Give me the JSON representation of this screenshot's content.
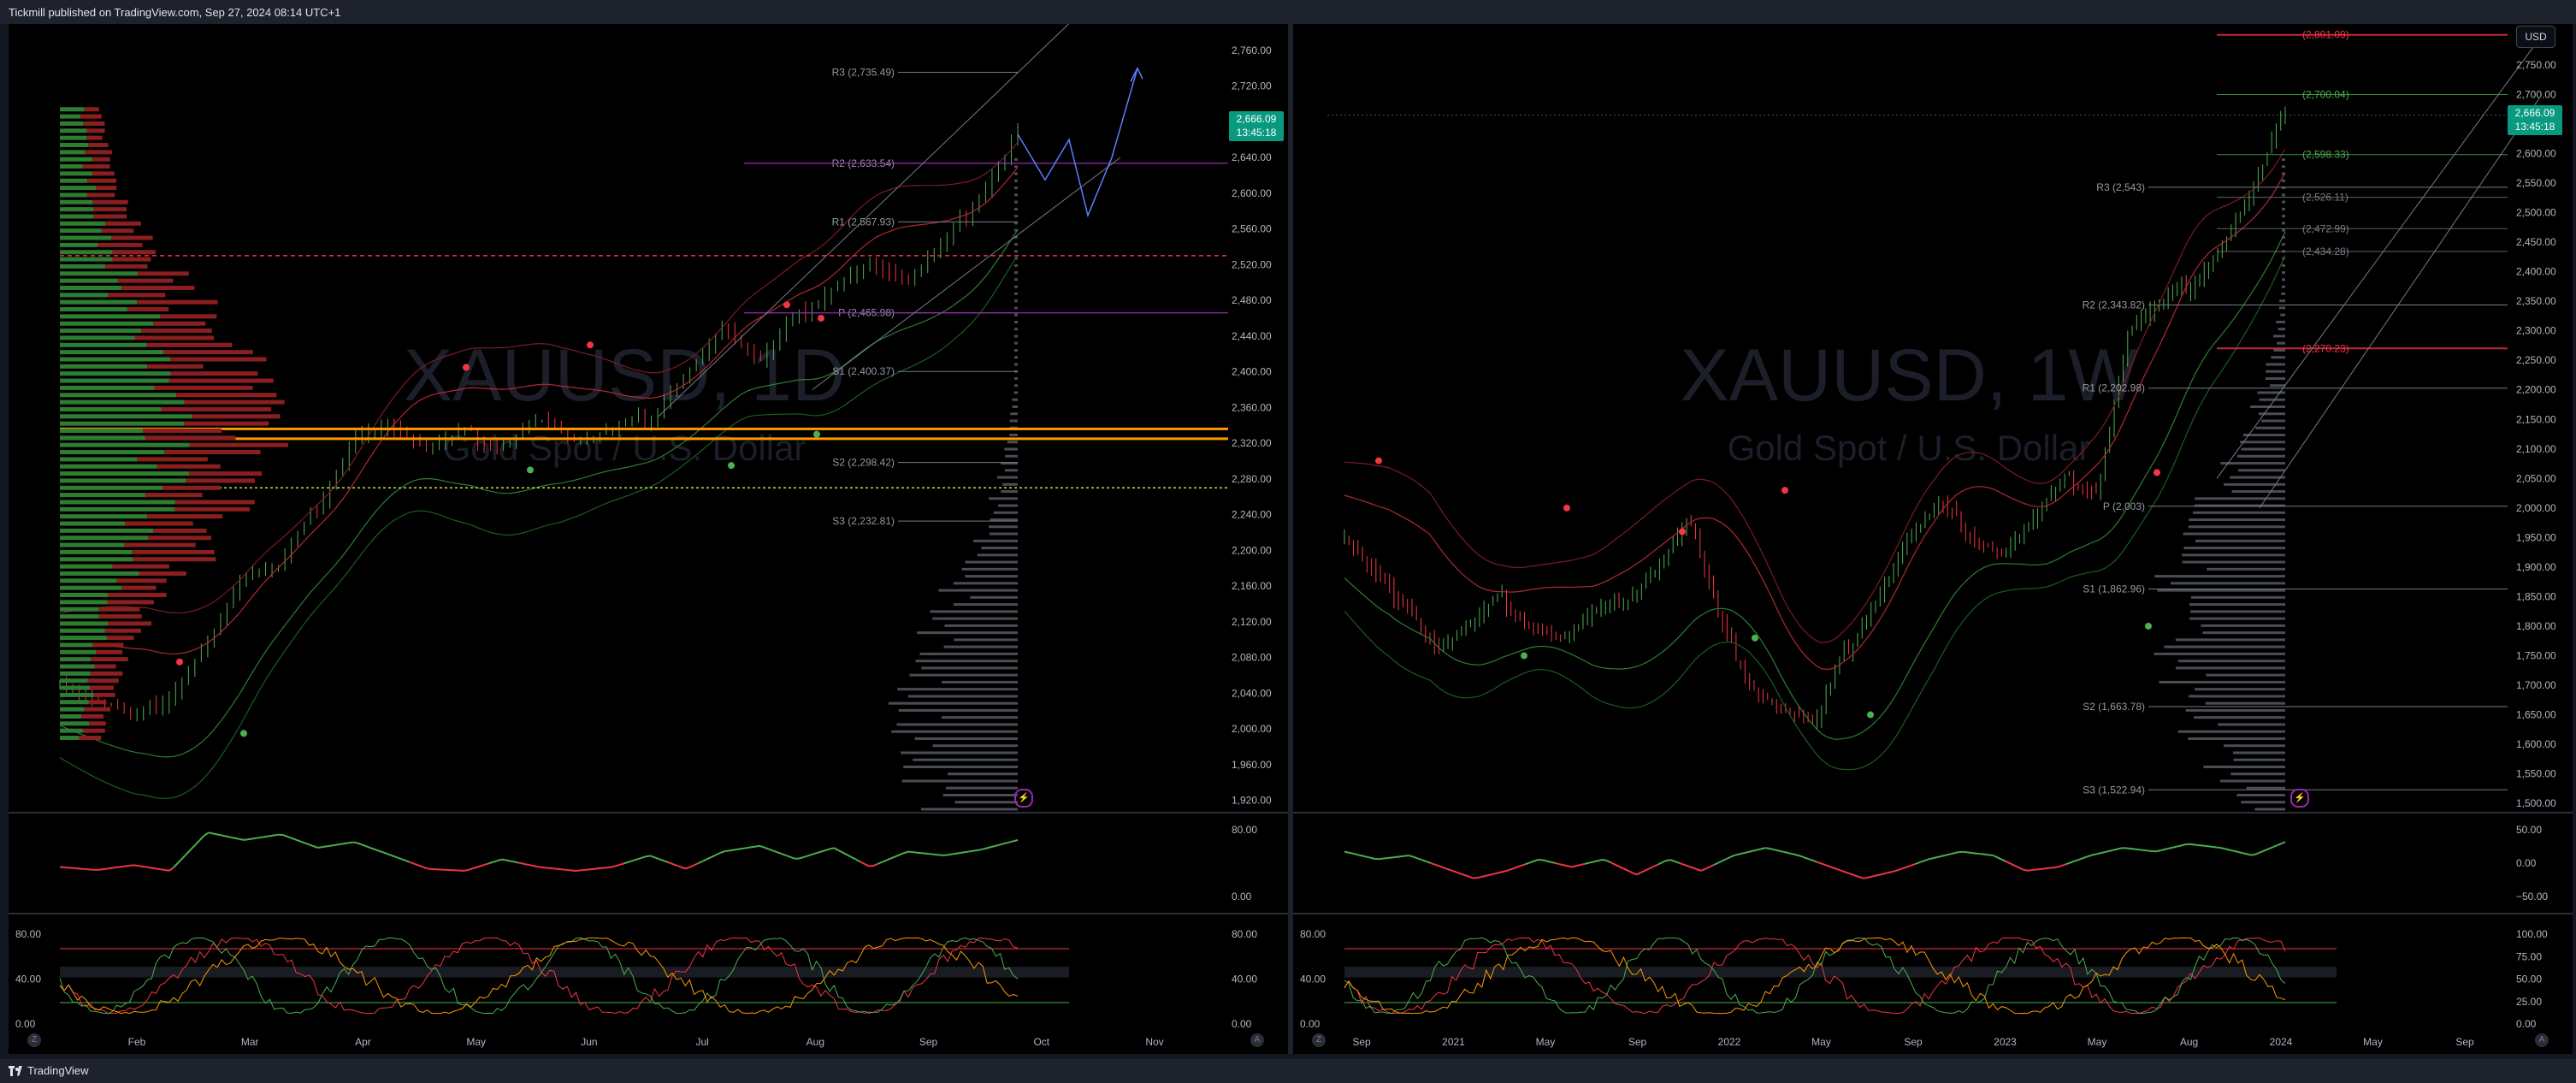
{
  "header": {
    "published_text": "Tickmill published on TradingView.com, Sep 27, 2024 08:14 UTC+1"
  },
  "footer": {
    "brand": "TradingView"
  },
  "left_chart": {
    "watermark_symbol": "XAUUSD, 1D",
    "watermark_desc": "Gold Spot / U.S. Dollar",
    "last_price": "2,666.09",
    "countdown": "13:45:18",
    "price_axis": [
      "2,760.00",
      "2,720.00",
      "2,680.00",
      "2,640.00",
      "2,600.00",
      "2,560.00",
      "2,520.00",
      "2,480.00",
      "2,440.00",
      "2,400.00",
      "2,360.00",
      "2,320.00",
      "2,280.00",
      "2,240.00",
      "2,200.00",
      "2,160.00",
      "2,120.00",
      "2,080.00",
      "2,040.00",
      "2,000.00",
      "1,960.00",
      "1,920.00"
    ],
    "pivot_labels": [
      {
        "label": "R3 (2,735.49)",
        "value": 2735.49
      },
      {
        "label": "R2 (2,633.54)",
        "value": 2633.54
      },
      {
        "label": "R1 (2,567.93)",
        "value": 2567.93
      },
      {
        "label": "P (2,465.98)",
        "value": 2465.98
      },
      {
        "label": "S1 (2,400.37)",
        "value": 2400.37
      },
      {
        "label": "S2 (2,298.42)",
        "value": 2298.42
      },
      {
        "label": "S3 (2,232.81)",
        "value": 2232.81
      }
    ],
    "time_axis": [
      "Feb",
      "Mar",
      "Apr",
      "May",
      "Jun",
      "Jul",
      "Aug",
      "Sep",
      "Oct",
      "Nov"
    ],
    "osc_axis": [
      "80.00",
      "0.00"
    ],
    "stoch_axis_left": [
      "80.00",
      "40.00",
      "0.00"
    ],
    "stoch_axis_right": [
      "80.00",
      "40.00",
      "0.00"
    ]
  },
  "right_chart": {
    "watermark_symbol": "XAUUSD, 1W",
    "watermark_desc": "Gold Spot / U.S. Dollar",
    "currency": "USD",
    "last_price": "2,666.09",
    "countdown": "13:45:18",
    "price_axis": [
      "2,750.00",
      "2,700.00",
      "2,650.00",
      "2,600.00",
      "2,550.00",
      "2,500.00",
      "2,450.00",
      "2,400.00",
      "2,350.00",
      "2,300.00",
      "2,250.00",
      "2,200.00",
      "2,150.00",
      "2,100.00",
      "2,050.00",
      "2,000.00",
      "1,950.00",
      "1,900.00",
      "1,850.00",
      "1,800.00",
      "1,750.00",
      "1,700.00",
      "1,650.00",
      "1,600.00",
      "1,550.00",
      "1,500.00"
    ],
    "level_labels": [
      {
        "label": "(2,801.09)",
        "value": 2801.09,
        "color": "#f23645"
      },
      {
        "label": "(2,700.04)",
        "value": 2700.04,
        "color": "#4caf50"
      },
      {
        "label": "(2,598.33)",
        "value": 2598.33,
        "color": "#4caf50"
      },
      {
        "label": "(2,526.11)",
        "value": 2526.11,
        "color": "#787b86"
      },
      {
        "label": "(2,472.99)",
        "value": 2472.99,
        "color": "#787b86"
      },
      {
        "label": "(2,434.28)",
        "value": 2434.28,
        "color": "#787b86"
      },
      {
        "label": "(2,270.23)",
        "value": 2270.23,
        "color": "#f23645"
      }
    ],
    "pivot_labels": [
      {
        "label": "R3 (2,543)",
        "value": 2543
      },
      {
        "label": "R2 (2,343.82)",
        "value": 2343.82
      },
      {
        "label": "R1 (2,202.98)",
        "value": 2202.98
      },
      {
        "label": "P (2,003)",
        "value": 2003
      },
      {
        "label": "S1 (1,862.96)",
        "value": 1862.96
      },
      {
        "label": "S2 (1,663.78)",
        "value": 1663.78
      },
      {
        "label": "S3 (1,522.94)",
        "value": 1522.94
      }
    ],
    "time_axis": [
      "Sep",
      "2021",
      "May",
      "Sep",
      "2022",
      "May",
      "Sep",
      "2023",
      "May",
      "Aug",
      "2024",
      "May",
      "Sep"
    ],
    "osc_axis": [
      "50.00",
      "0.00",
      "−50.00"
    ],
    "stoch_axis_left": [
      "80.00",
      "40.00",
      "0.00"
    ],
    "stoch_axis_right": [
      "100.00",
      "75.00",
      "50.00",
      "25.00",
      "0.00"
    ]
  },
  "colors": {
    "up": "#4caf50",
    "down": "#f23645",
    "accent_purple": "#9c27b0",
    "poc_orange": "#ff9800",
    "price_green": "#089981"
  }
}
